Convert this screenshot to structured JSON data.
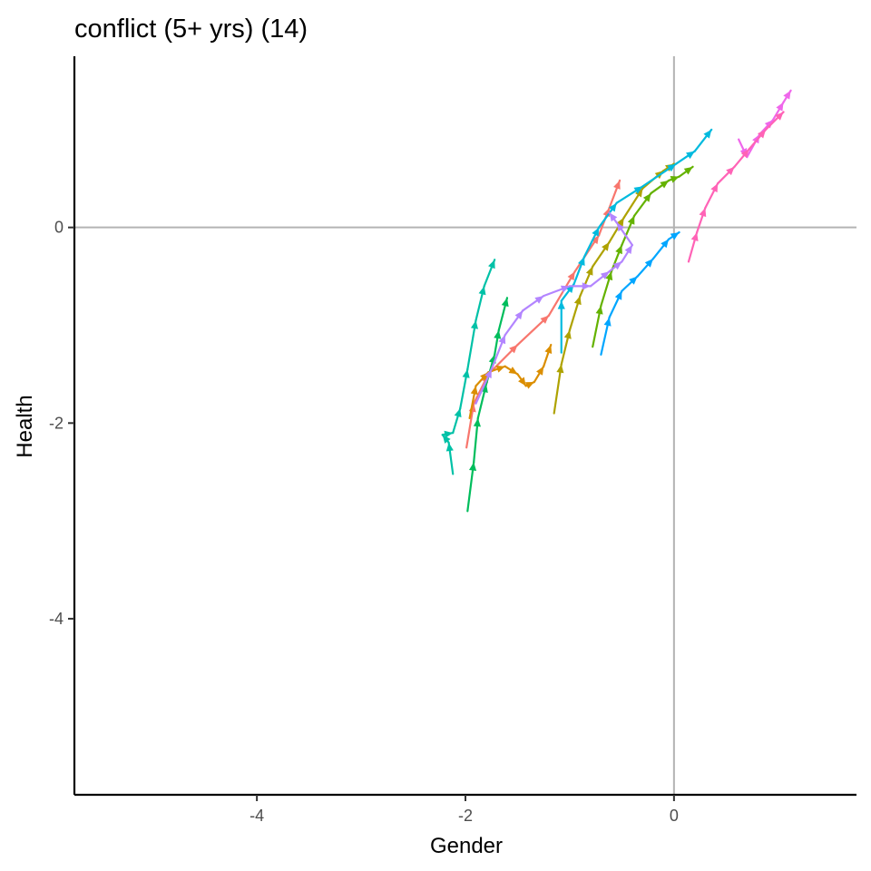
{
  "chart_data": {
    "type": "line",
    "title": "conflict (5+ yrs) (14)",
    "xlabel": "Gender",
    "ylabel": "Health",
    "xlim": [
      -5.75,
      1.75
    ],
    "ylim": [
      -5.8,
      1.75
    ],
    "x_ticks": [
      -4,
      -2,
      0
    ],
    "y_ticks": [
      -4,
      -2,
      0
    ],
    "grid": false,
    "reference_lines": {
      "x": 0,
      "y": 0,
      "color": "#b3b3b3"
    },
    "arrows": true,
    "series": [
      {
        "color": "#F8766D",
        "values": [
          [
            -1.99,
            -2.25
          ],
          [
            -1.92,
            -1.8
          ],
          [
            -1.78,
            -1.5
          ],
          [
            -1.5,
            -1.2
          ],
          [
            -1.2,
            -0.9
          ],
          [
            -0.95,
            -0.45
          ],
          [
            -0.72,
            -0.08
          ],
          [
            -0.62,
            0.2
          ],
          [
            -0.52,
            0.48
          ]
        ]
      },
      {
        "color": "#DB8E00",
        "values": [
          [
            -1.96,
            -1.95
          ],
          [
            -1.9,
            -1.62
          ],
          [
            -1.78,
            -1.48
          ],
          [
            -1.62,
            -1.42
          ],
          [
            -1.5,
            -1.5
          ],
          [
            -1.42,
            -1.62
          ],
          [
            -1.34,
            -1.58
          ],
          [
            -1.25,
            -1.42
          ],
          [
            -1.18,
            -1.2
          ]
        ]
      },
      {
        "color": "#AEA200",
        "values": [
          [
            -1.15,
            -1.9
          ],
          [
            -1.08,
            -1.4
          ],
          [
            -1.0,
            -1.05
          ],
          [
            -0.9,
            -0.7
          ],
          [
            -0.78,
            -0.4
          ],
          [
            -0.62,
            -0.15
          ],
          [
            -0.48,
            0.1
          ],
          [
            -0.3,
            0.4
          ],
          [
            -0.1,
            0.58
          ],
          [
            0.0,
            0.65
          ]
        ]
      },
      {
        "color": "#64B200",
        "values": [
          [
            -0.78,
            -1.22
          ],
          [
            -0.7,
            -0.8
          ],
          [
            -0.6,
            -0.45
          ],
          [
            -0.5,
            -0.18
          ],
          [
            -0.38,
            0.12
          ],
          [
            -0.22,
            0.35
          ],
          [
            -0.05,
            0.48
          ],
          [
            0.05,
            0.52
          ],
          [
            0.18,
            0.62
          ]
        ]
      },
      {
        "color": "#00BD5C",
        "values": [
          [
            -1.98,
            -2.9
          ],
          [
            -1.92,
            -2.4
          ],
          [
            -1.88,
            -1.95
          ],
          [
            -1.8,
            -1.6
          ],
          [
            -1.72,
            -1.3
          ],
          [
            -1.68,
            -1.05
          ],
          [
            -1.6,
            -0.72
          ]
        ]
      },
      {
        "color": "#00C1A7",
        "values": [
          [
            -2.12,
            -2.52
          ],
          [
            -2.16,
            -2.2
          ],
          [
            -2.22,
            -2.12
          ],
          [
            -2.12,
            -2.1
          ],
          [
            -2.05,
            -1.85
          ],
          [
            -1.98,
            -1.45
          ],
          [
            -1.9,
            -0.95
          ],
          [
            -1.82,
            -0.6
          ],
          [
            -1.72,
            -0.33
          ]
        ]
      },
      {
        "color": "#00BADE",
        "values": [
          [
            -1.08,
            -1.28
          ],
          [
            -1.08,
            -0.75
          ],
          [
            -0.96,
            -0.58
          ],
          [
            -0.86,
            -0.3
          ],
          [
            -0.72,
            0.0
          ],
          [
            -0.55,
            0.25
          ],
          [
            -0.3,
            0.42
          ],
          [
            0.02,
            0.65
          ],
          [
            0.2,
            0.78
          ],
          [
            0.36,
            1.0
          ]
        ]
      },
      {
        "color": "#00A6FF",
        "values": [
          [
            -0.7,
            -1.3
          ],
          [
            -0.62,
            -0.92
          ],
          [
            -0.5,
            -0.65
          ],
          [
            -0.35,
            -0.5
          ],
          [
            -0.2,
            -0.32
          ],
          [
            -0.05,
            -0.12
          ],
          [
            0.05,
            -0.05
          ]
        ]
      },
      {
        "color": "#B385FF",
        "values": [
          [
            -1.9,
            -1.8
          ],
          [
            -1.75,
            -1.45
          ],
          [
            -1.62,
            -1.1
          ],
          [
            -1.45,
            -0.85
          ],
          [
            -1.25,
            -0.7
          ],
          [
            -1.0,
            -0.6
          ],
          [
            -0.8,
            -0.6
          ],
          [
            -0.62,
            -0.45
          ],
          [
            -0.5,
            -0.35
          ],
          [
            -0.4,
            -0.18
          ],
          [
            -0.55,
            0.05
          ],
          [
            -0.62,
            0.15
          ]
        ]
      },
      {
        "color": "#EF67EB",
        "values": [
          [
            0.62,
            0.9
          ],
          [
            0.7,
            0.72
          ],
          [
            0.82,
            0.95
          ],
          [
            0.95,
            1.1
          ],
          [
            1.05,
            1.28
          ],
          [
            1.12,
            1.4
          ]
        ]
      },
      {
        "color": "#FF63B6",
        "values": [
          [
            0.14,
            -0.35
          ],
          [
            0.22,
            -0.05
          ],
          [
            0.3,
            0.2
          ],
          [
            0.42,
            0.45
          ],
          [
            0.58,
            0.62
          ],
          [
            0.72,
            0.8
          ],
          [
            0.88,
            1.0
          ],
          [
            1.05,
            1.18
          ]
        ]
      }
    ]
  }
}
